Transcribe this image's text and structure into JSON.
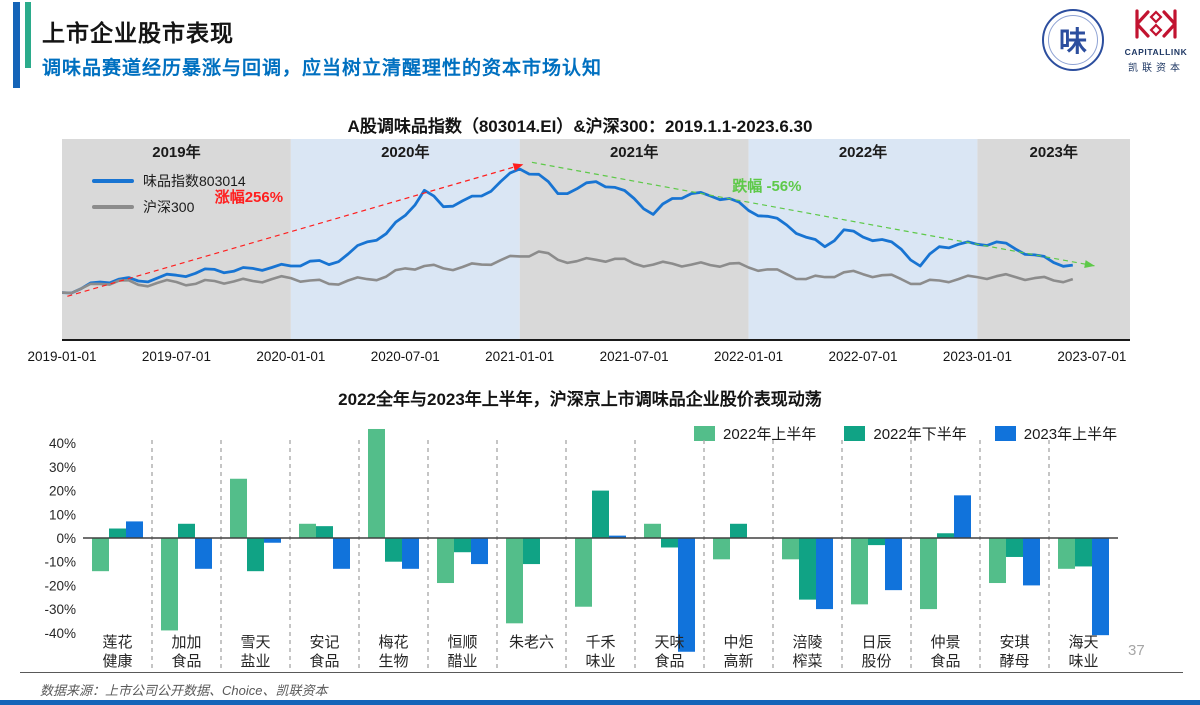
{
  "header": {
    "title": "上市企业股市表现",
    "subtitle": "调味品赛道经历暴涨与回调，应当树立清醒理性的资本市场认知"
  },
  "colors": {
    "accent_blue": "#1464B8",
    "accent_teal": "#2BAB8B",
    "subtitle_blue": "#0070C0",
    "bottom_strip": "#1464B8"
  },
  "logos": {
    "association_char": "味",
    "capitalink_name": "CAPITALLINK",
    "capitalink_cn": "凯联资本",
    "capitalink_red": "#C21330"
  },
  "chart_data": [
    {
      "type": "line",
      "title": "A股调味品指数（803014.EI）&沪深300：2019.1.1-2023.6.30",
      "x_tick_labels": [
        "2019-01-01",
        "2019-07-01",
        "2020-01-01",
        "2020-07-01",
        "2021-01-01",
        "2021-07-01",
        "2022-01-01",
        "2022-07-01",
        "2023-01-01",
        "2023-07-01"
      ],
      "x_axis_months": 56,
      "months_per_tick": 6,
      "value_range": [
        10,
        412
      ],
      "grid": false,
      "legend_position": "top-left",
      "band_tones": {
        "gray": "#D9D9D9",
        "blue": "#DAE6F4"
      },
      "year_bands": [
        {
          "label": "2019年",
          "from_month": 0,
          "to_month": 12,
          "tone": "gray"
        },
        {
          "label": "2020年",
          "from_month": 12,
          "to_month": 24,
          "tone": "blue"
        },
        {
          "label": "2021年",
          "from_month": 24,
          "to_month": 36,
          "tone": "gray"
        },
        {
          "label": "2022年",
          "from_month": 36,
          "to_month": 48,
          "tone": "blue"
        },
        {
          "label": "2023年",
          "from_month": 48,
          "to_month": 56,
          "tone": "gray"
        }
      ],
      "series": [
        {
          "name": "味品指数803014",
          "color": "#1874D2",
          "values": [
            100,
            108,
            122,
            128,
            124,
            130,
            136,
            140,
            148,
            144,
            150,
            152,
            155,
            165,
            158,
            180,
            205,
            222,
            260,
            312,
            278,
            290,
            300,
            330,
            356,
            345,
            305,
            315,
            330,
            318,
            295,
            262,
            295,
            305,
            300,
            295,
            270,
            258,
            240,
            215,
            195,
            230,
            215,
            210,
            190,
            155,
            195,
            200,
            200,
            205,
            190,
            178,
            162,
            157
          ]
        },
        {
          "name": "沪深300",
          "color": "#8C8C8C",
          "values": [
            100,
            108,
            118,
            125,
            116,
            120,
            122,
            118,
            124,
            123,
            124,
            128,
            130,
            125,
            118,
            125,
            128,
            133,
            150,
            155,
            150,
            153,
            158,
            167,
            175,
            185,
            168,
            165,
            168,
            170,
            160,
            158,
            160,
            158,
            157,
            160,
            152,
            148,
            138,
            128,
            132,
            142,
            138,
            136,
            128,
            118,
            125,
            128,
            132,
            134,
            132,
            130,
            125,
            128
          ]
        }
      ],
      "annotations": [
        {
          "text": "涨幅256%",
          "color": "#FF1F1F",
          "from": [
            0.005,
            0.775
          ],
          "to": [
            0.432,
            0.125
          ],
          "label": [
            0.175,
            0.31
          ]
        },
        {
          "text": "跌幅 -56%",
          "color": "#5EC949",
          "from": [
            0.44,
            0.115
          ],
          "to": [
            0.967,
            0.625
          ],
          "label": [
            0.66,
            0.255
          ]
        }
      ]
    },
    {
      "type": "bar",
      "title": "2022全年与2023年上半年，沪深京上市调味品企业股价表现动荡",
      "unit": "%",
      "y_ticks": [
        40,
        30,
        20,
        10,
        0,
        -10,
        -20,
        -30,
        -40
      ],
      "ylim": [
        -48,
        47
      ],
      "grid": false,
      "legend_position": "top-right",
      "categories": [
        "莲花健康",
        "加加食品",
        "雪天盐业",
        "安记食品",
        "梅花生物",
        "恒顺醋业",
        "朱老六",
        "千禾味业",
        "天味食品",
        "中炬高新",
        "涪陵榨菜",
        "日辰股份",
        "仲景食品",
        "安琪酵母",
        "海天味业"
      ],
      "series": [
        {
          "name": "2022年上半年",
          "color": "#53BE8A",
          "values": [
            -14,
            -39,
            25,
            6,
            46,
            -19,
            -36,
            -29,
            6,
            -9,
            -9,
            -28,
            -30,
            -19,
            -13
          ]
        },
        {
          "name": "2022年下半年",
          "color": "#10A385",
          "values": [
            4,
            6,
            -14,
            5,
            -10,
            -6,
            -11,
            20,
            -4,
            6,
            -26,
            -3,
            2,
            -8,
            -12
          ]
        },
        {
          "name": "2023年上半年",
          "color": "#1173DB",
          "values": [
            7,
            -13,
            -2,
            -13,
            -13,
            -11,
            0,
            1,
            -48,
            0,
            -30,
            -22,
            18,
            -20,
            -41
          ]
        }
      ]
    }
  ],
  "footer": {
    "source": "数据来源：上市公司公开数据、Choice、凯联资本",
    "page": "37"
  }
}
